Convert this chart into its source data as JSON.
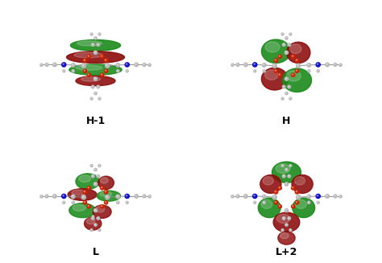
{
  "figure_width": 4.74,
  "figure_height": 3.27,
  "dpi": 100,
  "background_color": "#ffffff",
  "labels": [
    "H-1",
    "H",
    "L",
    "L+2"
  ],
  "label_fontsize": 9,
  "label_fontweight": "bold",
  "label_color": "#000000",
  "green_color": "#1a8a1a",
  "red_color": "#8b0a0a",
  "atom_gray": "#b8b8b8",
  "atom_dark_gray": "#909090",
  "atom_blue": "#1010cc",
  "atom_red": "#cc2200",
  "atom_white": "#e0e0e0"
}
